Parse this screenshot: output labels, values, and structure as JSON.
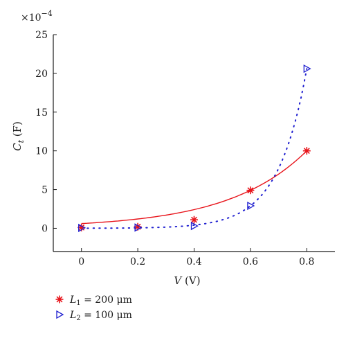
{
  "chart_data": {
    "type": "scatter",
    "xlabel": "V (V)",
    "ylabel": "C_t (F)",
    "y_multiplier": "×10−4",
    "xlim": [
      -0.1,
      0.9
    ],
    "ylim": [
      -3,
      25
    ],
    "x_ticks": [
      0,
      0.2,
      0.4,
      0.6,
      0.8
    ],
    "x_tick_labels": [
      "0",
      "0.2",
      "0.4",
      "0.6",
      "0.8"
    ],
    "y_ticks": [
      0,
      5,
      10,
      15,
      20,
      25
    ],
    "y_tick_labels": [
      "0",
      "5",
      "10",
      "15",
      "20",
      "25"
    ],
    "grid": false,
    "legend_position": "below",
    "series": [
      {
        "name": "L1 = 200 μm",
        "marker": "asterisk",
        "color": "#e8141b",
        "fit_style": "solid",
        "x": [
          0,
          0.2,
          0.4,
          0.6,
          0.8
        ],
        "y": [
          0.1,
          0.2,
          1.1,
          4.9,
          10.0
        ]
      },
      {
        "name": "L2 = 100 μm",
        "marker": "triangle-right",
        "color": "#1f1fd0",
        "fit_style": "dotted",
        "x": [
          0,
          0.2,
          0.4,
          0.6,
          0.8
        ],
        "y": [
          0.05,
          0.1,
          0.3,
          2.9,
          20.6
        ]
      }
    ]
  },
  "legend": [
    {
      "sym": "L",
      "sub": "1",
      "rest": " = 200 μm"
    },
    {
      "sym": "L",
      "sub": "2",
      "rest": " = 100 μm"
    }
  ]
}
